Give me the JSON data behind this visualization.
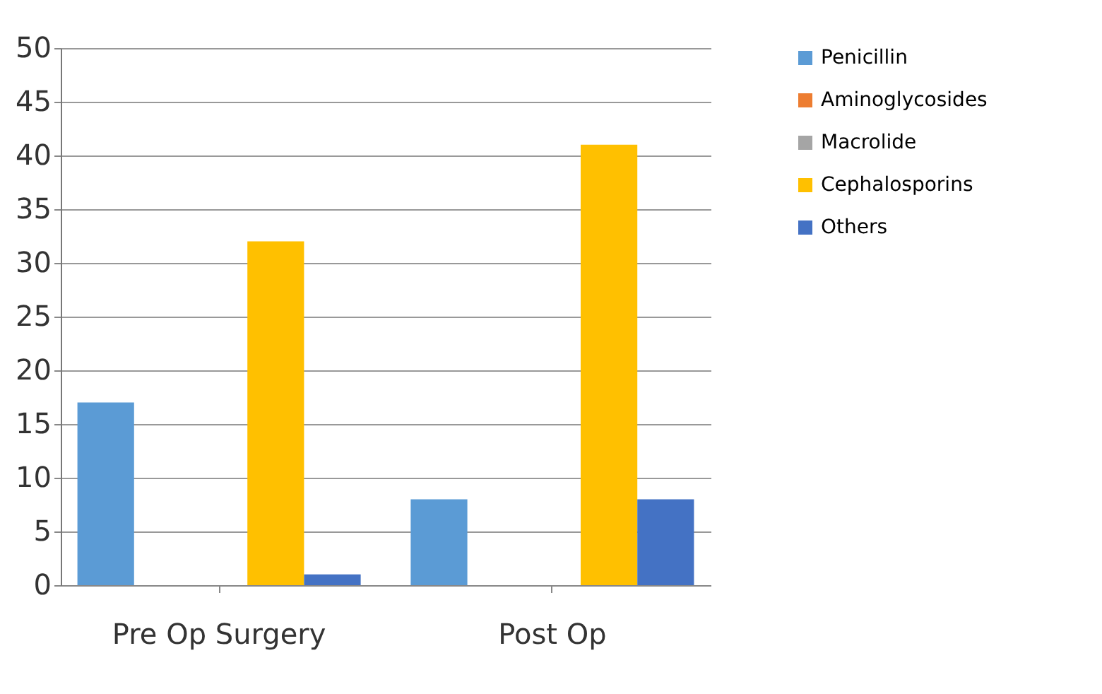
{
  "chart_data": {
    "type": "bar",
    "categories": [
      "Pre Op Surgery",
      "Post Op"
    ],
    "series": [
      {
        "name": "Penicillin",
        "color": "#5b9bd5",
        "values": [
          17,
          8
        ]
      },
      {
        "name": "Aminoglycosides",
        "color": "#ed7d31",
        "values": [
          0,
          0
        ]
      },
      {
        "name": "Macrolide",
        "color": "#a5a5a5",
        "values": [
          0,
          0
        ]
      },
      {
        "name": "Cephalosporins",
        "color": "#ffc000",
        "values": [
          32,
          41
        ]
      },
      {
        "name": "Others",
        "color": "#4472c4",
        "values": [
          1,
          8
        ]
      }
    ],
    "ylim": [
      0,
      50
    ],
    "yticks": [
      0,
      5,
      10,
      15,
      20,
      25,
      30,
      35,
      40,
      45,
      50
    ],
    "grid": "y",
    "legend": "right"
  }
}
